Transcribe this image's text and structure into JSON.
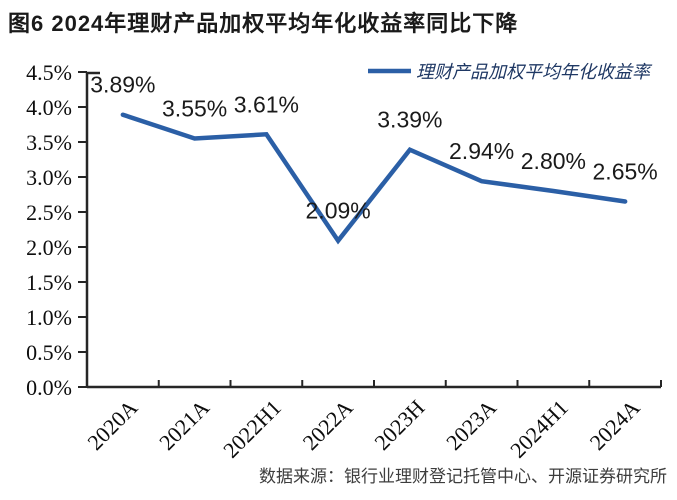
{
  "title": "图6  2024年理财产品加权平均年化收益率同比下降",
  "source": "数据来源：银行业理财登记托管中心、开源证券研究所",
  "chart_data": {
    "type": "line",
    "title": "图6  2024年理财产品加权平均年化收益率同比下降",
    "categories": [
      "2020A",
      "2021A",
      "2022H1",
      "2022A",
      "2023H",
      "2023A",
      "2024H1",
      "2024A"
    ],
    "series": [
      {
        "name": "理财产品加权平均年化收益率",
        "values": [
          3.89,
          3.55,
          3.61,
          2.09,
          3.39,
          2.94,
          2.8,
          2.65
        ]
      }
    ],
    "data_labels": [
      "3.89%",
      "3.55%",
      "3.61%",
      "2.09%",
      "3.39%",
      "2.94%",
      "2.80%",
      "2.65%"
    ],
    "xlabel": "",
    "ylabel": "",
    "ylim": [
      0,
      4.5
    ],
    "y_ticks": [
      {
        "value": 0.0,
        "label": "0.0%"
      },
      {
        "value": 0.5,
        "label": "0.5%"
      },
      {
        "value": 1.0,
        "label": "1.0%"
      },
      {
        "value": 1.5,
        "label": "1.5%"
      },
      {
        "value": 2.0,
        "label": "2.0%"
      },
      {
        "value": 2.5,
        "label": "2.5%"
      },
      {
        "value": 3.0,
        "label": "3.0%"
      },
      {
        "value": 3.5,
        "label": "3.5%"
      },
      {
        "value": 4.0,
        "label": "4.0%"
      },
      {
        "value": 4.5,
        "label": "4.5%"
      }
    ],
    "grid": false,
    "legend_position": "top-right",
    "colors": {
      "series": "#2b5fa6",
      "legend_text": "#1f3864",
      "axis": "#262626",
      "tick_label": "#0d0d0d",
      "data_label": "#1a1a1a"
    }
  }
}
